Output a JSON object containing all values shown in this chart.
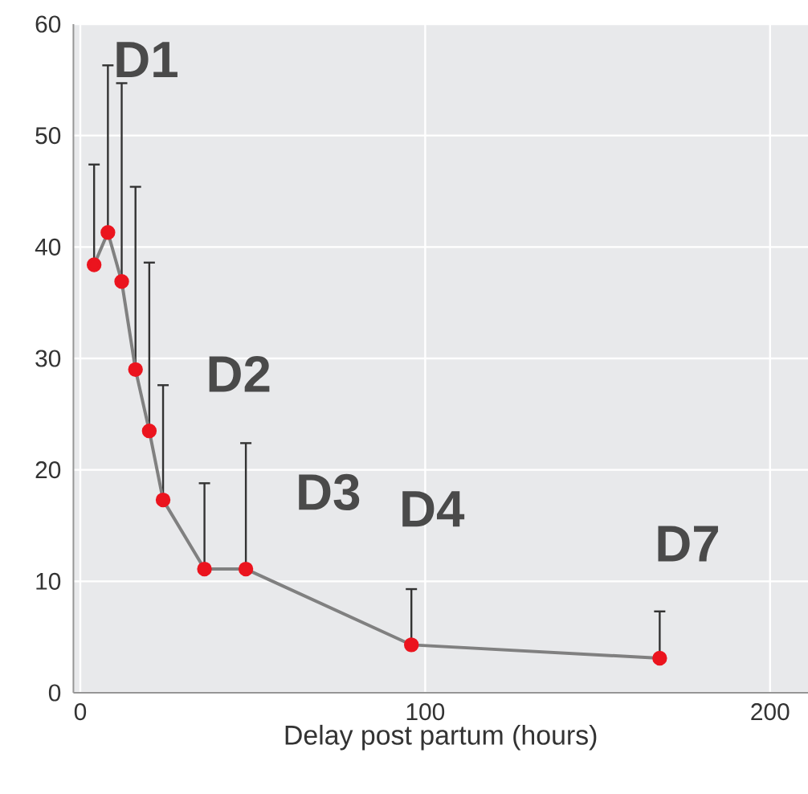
{
  "chart_data": {
    "type": "line",
    "xlabel": "Delay post partum (hours)",
    "x": [
      4,
      8,
      12,
      16,
      20,
      24,
      36,
      48,
      96,
      168
    ],
    "values": [
      38.4,
      41.3,
      36.9,
      29.0,
      23.5,
      17.3,
      11.1,
      11.1,
      4.3,
      3.1
    ],
    "errors": [
      [
        38.4,
        47.4
      ],
      [
        41.3,
        56.3
      ],
      [
        36.9,
        54.7
      ],
      [
        29.0,
        45.4
      ],
      [
        23.5,
        38.6
      ],
      [
        17.3,
        27.6
      ],
      [
        11.1,
        18.8
      ],
      [
        11.1,
        22.4
      ],
      [
        4.3,
        9.3
      ],
      [
        3.1,
        7.3
      ]
    ],
    "color": "#808080",
    "marker": "circle",
    "line_style": "solid",
    "grid": true,
    "xlim": [
      -2,
      211
    ],
    "ylim": [
      0,
      60
    ],
    "xticks": [
      0,
      100,
      200
    ],
    "yticks": [
      0,
      10,
      20,
      30,
      40,
      50,
      60
    ],
    "annotations": [
      "D1",
      "D2",
      "D3",
      "D4",
      "D7"
    ]
  }
}
